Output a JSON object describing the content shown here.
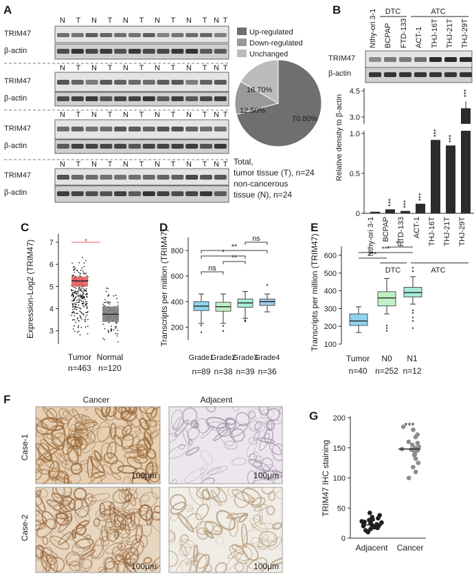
{
  "panels": [
    "A",
    "B",
    "C",
    "D",
    "E",
    "F",
    "G"
  ],
  "panelA": {
    "lane_labels": [
      "N",
      "T",
      "N",
      "T",
      "N",
      "T",
      "N",
      "T",
      "N",
      "T",
      "N",
      "T"
    ],
    "row_labels": [
      "TRIM47",
      "β-actin"
    ],
    "legend": [
      "Up-regulated",
      "Down-regulated",
      "Unchanged"
    ],
    "colors": {
      "up": "#6f6f6f",
      "down": "#9a9a9a",
      "unch": "#bcbcbc"
    },
    "pie_labels": [
      "70.80%",
      "12.50%",
      "16.70%"
    ],
    "caption": [
      "Total,",
      "tumor tissue (T), n=24",
      "non-cancerous",
      "tissue (N), n=24"
    ]
  },
  "panelB": {
    "groups": [
      "DTC",
      "ATC"
    ],
    "samples": [
      "Nthy-ori 3-1",
      "BCPAP",
      "FTD-133",
      "ACT-1",
      "THJ-16T",
      "THJ-21T",
      "THJ-29T"
    ],
    "row_labels": [
      "TRIM47",
      "β-actin"
    ],
    "ylabel": "Relative density to β-actin",
    "ticks_upper": [
      "4.5",
      "3.0"
    ],
    "ticks_lower": [
      "1.0",
      "0.5",
      "0"
    ],
    "star": "***"
  },
  "panelC": {
    "ylabel": "Expression-Log2 (TRIM47)",
    "ticks": [
      "7",
      "6",
      "5",
      "4",
      "3"
    ],
    "groups": [
      "Tumor",
      "Normal"
    ],
    "ns": [
      "n=463",
      "n=120"
    ],
    "star": "*",
    "colors": {
      "tumor": "#e85a5a",
      "normal": "#7d7d7d"
    }
  },
  "panelD": {
    "ylabel": "Transcripts per million (TRIM47)",
    "ticks": [
      "800",
      "600",
      "400",
      "200"
    ],
    "groups": [
      "Grade1",
      "Grade2",
      "Grade3",
      "Grade4"
    ],
    "ns": [
      "n=89",
      "n=38",
      "n=39",
      "n=36"
    ],
    "sig": [
      "ns",
      "**",
      "*",
      "**",
      "ns"
    ],
    "box_colors": [
      "#8fd3ee",
      "#bff0c4",
      "#a7ead8",
      "#9fcbe6"
    ]
  },
  "panelE": {
    "ylabel": "Transcripts per million (TRIM47)",
    "ticks": [
      "600",
      "500",
      "400",
      "300",
      "200",
      "100"
    ],
    "groups": [
      "Tumor",
      "N0",
      "N1"
    ],
    "ns": [
      "n=40",
      "n=252",
      "n=12"
    ],
    "sig": [
      "***",
      "***",
      "***"
    ],
    "box_colors": [
      "#8fd3ee",
      "#bff0c4",
      "#a7ead8"
    ]
  },
  "panelF": {
    "columns": [
      "Cancer",
      "Adjacent"
    ],
    "rows": [
      "Case-1",
      "Case-2"
    ],
    "scale": "100μm"
  },
  "panelG": {
    "ylabel": "TRIM47 IHC staining",
    "ticks": [
      "200",
      "150",
      "100",
      "50",
      "0"
    ],
    "groups": [
      "Adjacent",
      "Cancer"
    ],
    "star": "***"
  }
}
